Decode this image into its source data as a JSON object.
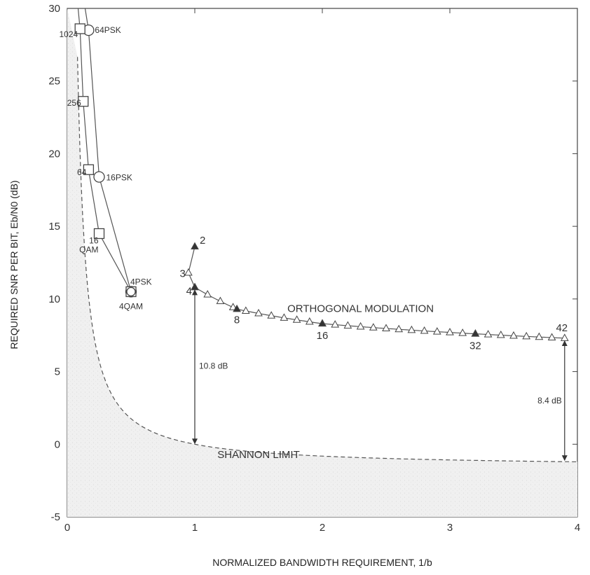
{
  "chart_data": {
    "type": "scatter",
    "xlabel": "NORMALIZED BANDWIDTH REQUIREMENT, 1/b",
    "ylabel": "REQUIRED SNR PER BIT, Eb/N0 (dB)",
    "xlim": [
      0,
      4
    ],
    "ylim": [
      -5,
      30
    ],
    "xticks": [
      "0",
      "1",
      "2",
      "3",
      "4"
    ],
    "yticks": [
      "-5",
      "0",
      "5",
      "10",
      "15",
      "20",
      "25",
      "30"
    ],
    "series": [
      {
        "name": "PSK",
        "marker": "circle",
        "points": [
          {
            "x": 0.167,
            "y": 28.5,
            "label": "64PSK"
          },
          {
            "x": 0.25,
            "y": 18.4,
            "label": "16PSK"
          },
          {
            "x": 0.5,
            "y": 10.5,
            "label": "4PSK"
          }
        ]
      },
      {
        "name": "QAM",
        "marker": "square",
        "points": [
          {
            "x": 0.1,
            "y": 28.6,
            "label": "1024"
          },
          {
            "x": 0.125,
            "y": 23.6,
            "label": "256"
          },
          {
            "x": 0.167,
            "y": 18.9,
            "label": "64"
          },
          {
            "x": 0.25,
            "y": 14.5,
            "label": "16"
          },
          {
            "x": 0.5,
            "y": 10.5,
            "label": "4QAM"
          }
        ]
      },
      {
        "name": "ORTHOGONAL MODULATION",
        "marker": "triangle",
        "labeled_points": [
          {
            "M": "2",
            "x": 1.0,
            "y": 13.6
          },
          {
            "M": "3",
            "x": 0.95,
            "y": 11.8
          },
          {
            "M": "4",
            "x": 1.0,
            "y": 10.8
          },
          {
            "M": "8",
            "x": 1.33,
            "y": 9.3
          },
          {
            "M": "16",
            "x": 2.0,
            "y": 8.3
          },
          {
            "M": "32",
            "x": 3.2,
            "y": 7.6
          },
          {
            "M": "42",
            "x": 3.9,
            "y": 7.3
          }
        ]
      },
      {
        "name": "SHANNON LIMIT",
        "style": "dashed"
      }
    ],
    "annotations": [
      {
        "text": "QAM"
      },
      {
        "text": "ORTHOGONAL MODULATION"
      },
      {
        "text": "SHANNON LIMIT"
      },
      {
        "text": "10.8 dB",
        "x": 1.0
      },
      {
        "text": "8.4 dB",
        "x": 3.9
      }
    ]
  }
}
